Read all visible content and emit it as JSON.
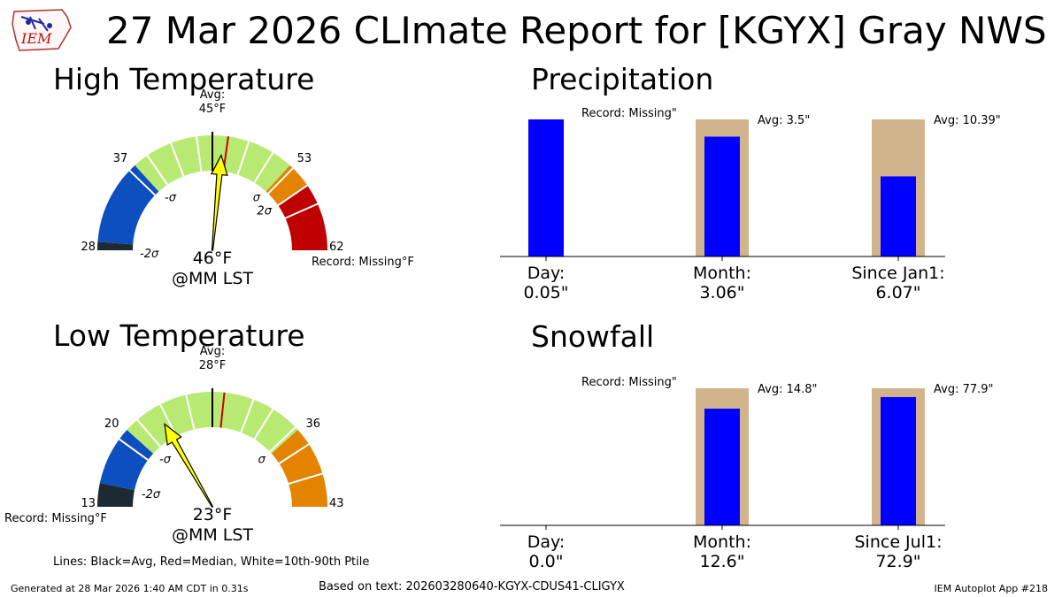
{
  "title": "27 Mar 2026 CLImate Report for [KGYX] Gray NWS",
  "logo_text": "IEM",
  "footer": {
    "generated": "Generated at 28 Mar 2026 1:40 AM CDT in 0.31s",
    "based_on": "Based on text: 202603280640-KGYX-CDUS41-CLIGYX",
    "app": "IEM Autoplot App #218"
  },
  "legend_note": "Lines: Black=Avg, Red=Median, White=10th-90th Ptile",
  "colors": {
    "below_2sigma": "#1d2a33",
    "below_sigma": "#0e4fbf",
    "normal": "#b8ea73",
    "above_sigma": "#e38300",
    "above_2sigma": "#c00000",
    "arrow": "#ffff00",
    "median": "#cc0000",
    "bar_obs": "#0000ff",
    "bar_avg": "#d2b48c"
  },
  "chart_data": [
    {
      "type": "gauge",
      "title": "High Temperature",
      "range": [
        28,
        62
      ],
      "avg": 45,
      "avg_label": "Avg:",
      "avg_value_label": "45°F",
      "median": 46.5,
      "observed": 46,
      "observed_label": "46°F",
      "time_label": "@MM LST",
      "record_label": "Record: Missing°F",
      "tick_values": [
        28,
        37,
        53,
        62
      ],
      "zones": [
        {
          "from": 28,
          "to": 28.8,
          "zone": "below_2sigma"
        },
        {
          "from": 28.8,
          "to": 37,
          "zone": "below_sigma"
        },
        {
          "from": 37,
          "to": 53,
          "zone": "normal"
        },
        {
          "from": 53,
          "to": 55.5,
          "zone": "above_sigma"
        },
        {
          "from": 55.5,
          "to": 62,
          "zone": "above_2sigma"
        }
      ],
      "sigma_labels": [
        {
          "value": 28,
          "label": "-2σ"
        },
        {
          "value": 37,
          "label": "-σ"
        },
        {
          "value": 53,
          "label": "σ"
        },
        {
          "value": 55.5,
          "label": "2σ"
        }
      ],
      "percentile_lines": [
        36.3,
        38.5,
        41,
        43.5,
        48.5,
        51,
        53.4,
        55.5,
        57.5
      ]
    },
    {
      "type": "gauge",
      "title": "Low Temperature",
      "range": [
        13,
        43
      ],
      "avg": 28,
      "avg_label": "Avg:",
      "avg_value_label": "28°F",
      "median": 29,
      "observed": 23,
      "observed_label": "23°F",
      "time_label": "@MM LST",
      "record_label": "Record: Missing°F",
      "tick_values": [
        13,
        20,
        36,
        43
      ],
      "zones": [
        {
          "from": 13,
          "to": 15,
          "zone": "below_2sigma"
        },
        {
          "from": 15,
          "to": 20,
          "zone": "below_sigma"
        },
        {
          "from": 20,
          "to": 36,
          "zone": "normal"
        },
        {
          "from": 36,
          "to": 43,
          "zone": "above_sigma"
        }
      ],
      "sigma_labels": [
        {
          "value": 15,
          "label": "-2σ"
        },
        {
          "value": 20,
          "label": "-σ"
        },
        {
          "value": 36,
          "label": "σ"
        }
      ],
      "percentile_lines": [
        19,
        21.2,
        23.5,
        25.8,
        31.5,
        33.3,
        35.7,
        37.5,
        40.2
      ]
    },
    {
      "type": "bar",
      "title": "Precipitation",
      "categories": [
        "Day:",
        "Month:",
        "Since Jan1:"
      ],
      "value_labels": [
        "0.05\"",
        "3.06\"",
        "6.07\""
      ],
      "values": [
        0.05,
        3.06,
        6.07
      ],
      "avg": [
        null,
        3.5,
        10.39
      ],
      "avg_labels": [
        "",
        "Avg: 3.5\"",
        "Avg: 10.39\""
      ],
      "record_label": "Record: Missing\"",
      "note": "Each bar normalized to max(observed, avg)"
    },
    {
      "type": "bar",
      "title": "Snowfall",
      "categories": [
        "Day:",
        "Month:",
        "Since Jul1:"
      ],
      "value_labels": [
        "0.0\"",
        "12.6\"",
        "72.9\""
      ],
      "values": [
        0.0,
        12.6,
        72.9
      ],
      "avg": [
        null,
        14.8,
        77.9
      ],
      "avg_labels": [
        "",
        "Avg: 14.8\"",
        "Avg: 77.9\""
      ],
      "record_label": "Record: Missing\"",
      "note": "Each bar normalized to max(observed, avg)"
    }
  ]
}
